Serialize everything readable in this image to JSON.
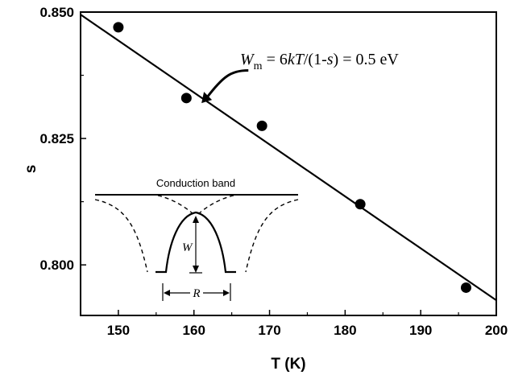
{
  "chart_data": {
    "type": "scatter",
    "xlabel": "T (K)",
    "ylabel": "s",
    "xlim": [
      145,
      200
    ],
    "ylim": [
      0.79,
      0.85
    ],
    "x_ticks": [
      150,
      160,
      170,
      180,
      190,
      200
    ],
    "x_tick_labels": [
      "150",
      "160",
      "170",
      "180",
      "190",
      "200"
    ],
    "y_ticks": [
      0.8,
      0.825,
      0.85
    ],
    "y_tick_labels": [
      "0.800",
      "0.825",
      "0.850"
    ],
    "grid": false,
    "series": [
      {
        "kind": "points",
        "x": [
          150,
          159,
          169,
          182,
          196
        ],
        "y": [
          0.847,
          0.833,
          0.8275,
          0.812,
          0.7955
        ]
      },
      {
        "kind": "fit-line",
        "x": [
          145,
          200
        ],
        "y": [
          0.8495,
          0.793
        ]
      }
    ],
    "annotation": {
      "lhs": "W",
      "lhs_sub": "m",
      "eq": " = 6",
      "k": "k",
      "T": "T",
      "den": "/(1-",
      "s": "s",
      "rhs": ") = 0.5 eV",
      "arrow_from": [
        164,
        0.8375
      ],
      "arrow_to": [
        161,
        0.832
      ]
    },
    "inset": {
      "conduction_band_label": "Conduction band",
      "barrier_label": "W",
      "distance_label": "R"
    }
  }
}
